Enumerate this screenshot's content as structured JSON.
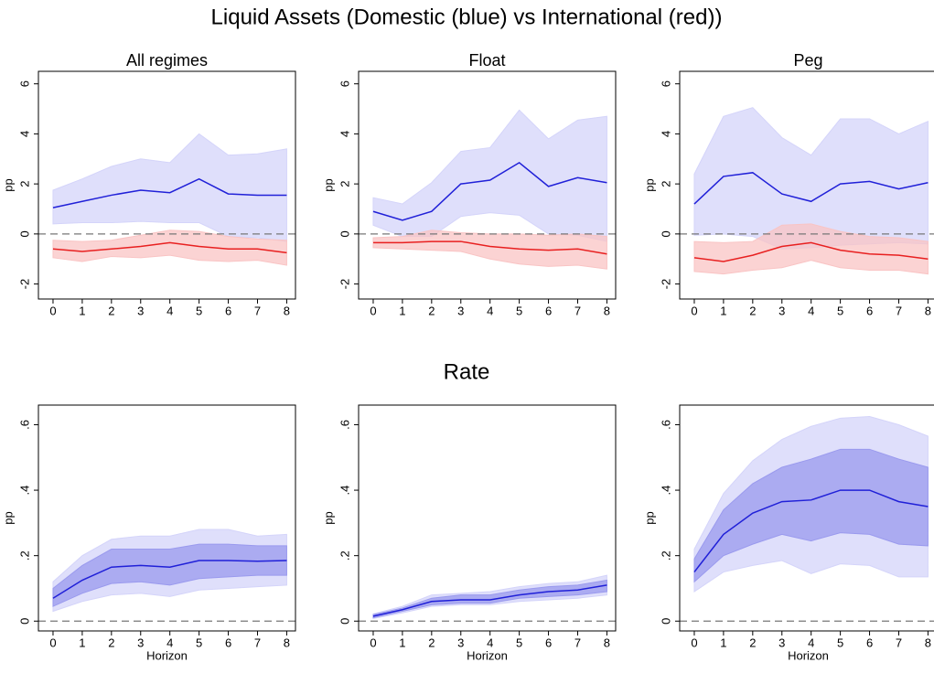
{
  "title": "Liquid Assets (Domestic (blue) vs International (red))",
  "section_title": "Rate",
  "chart_data": [
    {
      "type": "line",
      "title": "All regimes",
      "ylabel": "pp",
      "x": [
        0,
        1,
        2,
        3,
        4,
        5,
        6,
        7,
        8
      ],
      "xlim": [
        -0.5,
        8.3
      ],
      "xticks": [
        0,
        1,
        2,
        3,
        4,
        5,
        6,
        7,
        8
      ],
      "ylim": [
        -2.6,
        6.5
      ],
      "yticks": [
        -2,
        0,
        2,
        4,
        6
      ],
      "reference_line": 0,
      "series": [
        {
          "color": "#2020d8",
          "values": [
            1.05,
            1.3,
            1.55,
            1.75,
            1.65,
            2.2,
            1.6,
            1.55,
            1.55
          ],
          "bands": [
            {
              "color": "#d4d4fa",
              "upper": [
                1.75,
                2.2,
                2.7,
                3.0,
                2.85,
                4.0,
                3.15,
                3.2,
                3.4
              ],
              "lower": [
                0.4,
                0.45,
                0.45,
                0.5,
                0.45,
                0.45,
                -0.1,
                -0.15,
                -0.3
              ]
            }
          ]
        },
        {
          "color": "#e82020",
          "values": [
            -0.6,
            -0.7,
            -0.6,
            -0.5,
            -0.35,
            -0.5,
            -0.6,
            -0.6,
            -0.75
          ],
          "bands": [
            {
              "color": "#f9c4c4",
              "upper": [
                -0.25,
                -0.3,
                -0.25,
                -0.05,
                0.15,
                0.1,
                -0.1,
                -0.2,
                -0.25
              ],
              "lower": [
                -0.95,
                -1.1,
                -0.9,
                -0.95,
                -0.85,
                -1.05,
                -1.1,
                -1.05,
                -1.25
              ]
            }
          ]
        }
      ]
    },
    {
      "type": "line",
      "title": "Float",
      "ylabel": "pp",
      "x": [
        0,
        1,
        2,
        3,
        4,
        5,
        6,
        7,
        8
      ],
      "xlim": [
        -0.5,
        8.3
      ],
      "xticks": [
        0,
        1,
        2,
        3,
        4,
        5,
        6,
        7,
        8
      ],
      "ylim": [
        -2.6,
        6.5
      ],
      "yticks": [
        -2,
        0,
        2,
        4,
        6
      ],
      "reference_line": 0,
      "series": [
        {
          "color": "#2020d8",
          "values": [
            0.9,
            0.55,
            0.9,
            2.0,
            2.15,
            2.85,
            1.9,
            2.25,
            2.05
          ],
          "bands": [
            {
              "color": "#d4d4fa",
              "upper": [
                1.45,
                1.2,
                2.05,
                3.3,
                3.45,
                4.95,
                3.8,
                4.55,
                4.7
              ],
              "lower": [
                0.35,
                -0.1,
                -0.1,
                0.7,
                0.85,
                0.75,
                0.0,
                -0.05,
                -0.3
              ]
            }
          ]
        },
        {
          "color": "#e82020",
          "values": [
            -0.35,
            -0.35,
            -0.3,
            -0.3,
            -0.5,
            -0.6,
            -0.65,
            -0.6,
            -0.8
          ],
          "bands": [
            {
              "color": "#f9c4c4",
              "upper": [
                -0.15,
                -0.1,
                0.15,
                0.05,
                0.0,
                0.0,
                -0.05,
                0.0,
                -0.1
              ],
              "lower": [
                -0.55,
                -0.6,
                -0.65,
                -0.7,
                -1.0,
                -1.2,
                -1.3,
                -1.25,
                -1.4
              ]
            }
          ]
        }
      ]
    },
    {
      "type": "line",
      "title": "Peg",
      "ylabel": "pp",
      "x": [
        0,
        1,
        2,
        3,
        4,
        5,
        6,
        7,
        8
      ],
      "xlim": [
        -0.5,
        8.3
      ],
      "xticks": [
        0,
        1,
        2,
        3,
        4,
        5,
        6,
        7,
        8
      ],
      "ylim": [
        -2.6,
        6.5
      ],
      "yticks": [
        -2,
        0,
        2,
        4,
        6
      ],
      "reference_line": 0,
      "series": [
        {
          "color": "#2020d8",
          "values": [
            1.2,
            2.3,
            2.45,
            1.6,
            1.3,
            2.0,
            2.1,
            1.8,
            2.05
          ],
          "bands": [
            {
              "color": "#d4d4fa",
              "upper": [
                2.4,
                4.7,
                5.05,
                3.85,
                3.15,
                4.6,
                4.6,
                4.0,
                4.5
              ],
              "lower": [
                -0.05,
                0.0,
                -0.1,
                -0.6,
                -0.55,
                -0.45,
                -0.4,
                -0.35,
                -0.4
              ]
            }
          ]
        },
        {
          "color": "#e82020",
          "values": [
            -0.95,
            -1.1,
            -0.85,
            -0.5,
            -0.35,
            -0.65,
            -0.8,
            -0.85,
            -1.0
          ],
          "bands": [
            {
              "color": "#f9c4c4",
              "upper": [
                -0.3,
                -0.35,
                -0.3,
                0.35,
                0.4,
                0.1,
                -0.1,
                -0.15,
                -0.3
              ],
              "lower": [
                -1.5,
                -1.6,
                -1.45,
                -1.35,
                -1.05,
                -1.35,
                -1.45,
                -1.45,
                -1.6
              ]
            }
          ]
        }
      ]
    },
    {
      "type": "line",
      "ylabel": "pp",
      "xlabel": "Horizon",
      "x": [
        0,
        1,
        2,
        3,
        4,
        5,
        6,
        7,
        8
      ],
      "xlim": [
        -0.5,
        8.3
      ],
      "xticks": [
        0,
        1,
        2,
        3,
        4,
        5,
        6,
        7,
        8
      ],
      "ylim": [
        -0.03,
        0.66
      ],
      "yticks": [
        0,
        {
          "value": 0.2,
          "label": ".2"
        },
        {
          "value": 0.4,
          "label": ".4"
        },
        {
          "value": 0.6,
          "label": ".6"
        }
      ],
      "reference_line": 0,
      "series": [
        {
          "color": "#2020d8",
          "values": [
            0.07,
            0.125,
            0.165,
            0.17,
            0.165,
            0.185,
            0.185,
            0.183,
            0.185
          ],
          "bands": [
            {
              "color": "#d4d4fa",
              "upper": [
                0.12,
                0.2,
                0.25,
                0.26,
                0.26,
                0.28,
                0.28,
                0.26,
                0.265
              ],
              "lower": [
                0.03,
                0.06,
                0.08,
                0.085,
                0.075,
                0.095,
                0.1,
                0.105,
                0.11
              ]
            },
            {
              "color": "#9a9aee",
              "upper": [
                0.1,
                0.17,
                0.22,
                0.22,
                0.22,
                0.235,
                0.235,
                0.23,
                0.23
              ],
              "lower": [
                0.045,
                0.085,
                0.115,
                0.12,
                0.11,
                0.13,
                0.135,
                0.14,
                0.14
              ]
            }
          ]
        }
      ]
    },
    {
      "type": "line",
      "ylabel": "pp",
      "xlabel": "Horizon",
      "x": [
        0,
        1,
        2,
        3,
        4,
        5,
        6,
        7,
        8
      ],
      "xlim": [
        -0.5,
        8.3
      ],
      "xticks": [
        0,
        1,
        2,
        3,
        4,
        5,
        6,
        7,
        8
      ],
      "ylim": [
        -0.03,
        0.66
      ],
      "yticks": [
        0,
        {
          "value": 0.2,
          "label": ".2"
        },
        {
          "value": 0.4,
          "label": ".4"
        },
        {
          "value": 0.6,
          "label": ".6"
        }
      ],
      "reference_line": 0,
      "series": [
        {
          "color": "#2020d8",
          "values": [
            0.015,
            0.035,
            0.06,
            0.065,
            0.065,
            0.08,
            0.09,
            0.095,
            0.11
          ],
          "bands": [
            {
              "color": "#d4d4fa",
              "upper": [
                0.022,
                0.045,
                0.08,
                0.085,
                0.09,
                0.105,
                0.115,
                0.12,
                0.14
              ],
              "lower": [
                0.008,
                0.025,
                0.045,
                0.05,
                0.05,
                0.06,
                0.065,
                0.07,
                0.08
              ]
            },
            {
              "color": "#9a9aee",
              "upper": [
                0.02,
                0.04,
                0.07,
                0.08,
                0.08,
                0.095,
                0.105,
                0.11,
                0.125
              ],
              "lower": [
                0.01,
                0.03,
                0.05,
                0.055,
                0.055,
                0.07,
                0.075,
                0.08,
                0.09
              ]
            }
          ]
        }
      ]
    },
    {
      "type": "line",
      "ylabel": "pp",
      "xlabel": "Horizon",
      "x": [
        0,
        1,
        2,
        3,
        4,
        5,
        6,
        7,
        8
      ],
      "xlim": [
        -0.5,
        8.3
      ],
      "xticks": [
        0,
        1,
        2,
        3,
        4,
        5,
        6,
        7,
        8
      ],
      "ylim": [
        -0.03,
        0.66
      ],
      "yticks": [
        0,
        {
          "value": 0.2,
          "label": ".2"
        },
        {
          "value": 0.4,
          "label": ".4"
        },
        {
          "value": 0.6,
          "label": ".6"
        }
      ],
      "reference_line": 0,
      "series": [
        {
          "color": "#2020d8",
          "values": [
            0.15,
            0.265,
            0.33,
            0.365,
            0.37,
            0.4,
            0.4,
            0.365,
            0.35
          ],
          "bands": [
            {
              "color": "#d4d4fa",
              "upper": [
                0.22,
                0.39,
                0.49,
                0.555,
                0.595,
                0.62,
                0.625,
                0.6,
                0.565
              ],
              "lower": [
                0.09,
                0.15,
                0.17,
                0.185,
                0.145,
                0.175,
                0.17,
                0.135,
                0.135
              ]
            },
            {
              "color": "#9a9aee",
              "upper": [
                0.19,
                0.34,
                0.42,
                0.47,
                0.495,
                0.525,
                0.525,
                0.495,
                0.47
              ],
              "lower": [
                0.12,
                0.2,
                0.235,
                0.265,
                0.245,
                0.27,
                0.265,
                0.235,
                0.23
              ]
            }
          ]
        }
      ]
    }
  ]
}
